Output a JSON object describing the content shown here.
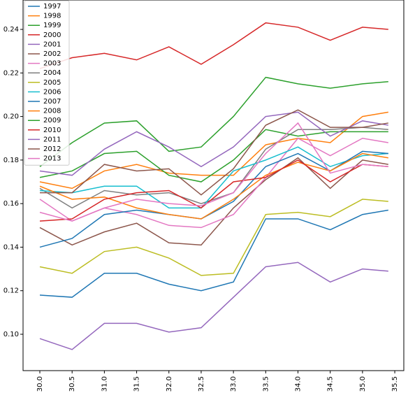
{
  "chart_data": {
    "type": "line",
    "x": [
      30.0,
      30.5,
      31.0,
      31.5,
      32.0,
      32.5,
      33.0,
      33.5,
      34.0,
      34.5,
      35.0,
      35.4
    ],
    "xlim": [
      29.74,
      35.64
    ],
    "xticks": [
      {
        "value": 30.0,
        "label": "30.0"
      },
      30.5,
      {
        "value": 31.0,
        "label": "31.0"
      },
      31.5,
      {
        "value": 32.0,
        "label": "32.0"
      },
      32.5,
      {
        "value": 33.0,
        "label": "33.0"
      },
      33.5,
      {
        "value": 34.0,
        "label": "34.0"
      },
      34.5,
      {
        "value": 35.0,
        "label": "35.0"
      },
      35.5
    ],
    "ylim": [
      0.0833,
      0.2535
    ],
    "yticks": [
      {
        "value": 0.1,
        "label": "0.10"
      },
      0.12,
      0.14,
      0.16,
      0.18,
      {
        "value": 0.2,
        "label": "0.20"
      },
      0.22,
      0.24
    ],
    "legend": "upper left",
    "series": [
      {
        "name": "1997",
        "color": "#1f77b4",
        "values": [
          0.118,
          0.117,
          0.128,
          0.128,
          0.123,
          0.12,
          0.124,
          0.153,
          0.153,
          0.148,
          0.155,
          0.157
        ]
      },
      {
        "name": "1998",
        "color": "#ff7f0e",
        "values": [
          0.17,
          0.167,
          0.175,
          0.178,
          0.174,
          0.173,
          0.173,
          0.187,
          0.19,
          0.188,
          0.2,
          0.202
        ]
      },
      {
        "name": "1999",
        "color": "#2ca02c",
        "values": [
          0.177,
          0.188,
          0.197,
          0.198,
          0.184,
          0.186,
          0.2,
          0.218,
          0.215,
          0.213,
          0.215,
          0.216
        ]
      },
      {
        "name": "2000",
        "color": "#d62728",
        "values": [
          0.222,
          0.227,
          0.229,
          0.226,
          0.232,
          0.224,
          0.233,
          0.243,
          0.241,
          0.235,
          0.241,
          0.24
        ]
      },
      {
        "name": "2001",
        "color": "#9467bd",
        "values": [
          0.098,
          0.093,
          0.105,
          0.105,
          0.101,
          0.103,
          0.117,
          0.131,
          0.133,
          0.124,
          0.13,
          0.129
        ]
      },
      {
        "name": "2002",
        "color": "#8c564b",
        "values": [
          0.149,
          0.141,
          0.147,
          0.151,
          0.142,
          0.141,
          0.158,
          0.171,
          0.181,
          0.167,
          0.18,
          0.178
        ]
      },
      {
        "name": "2003",
        "color": "#e377c2",
        "values": [
          0.162,
          0.152,
          0.158,
          0.155,
          0.15,
          0.149,
          0.155,
          0.172,
          0.19,
          0.182,
          0.19,
          0.188
        ]
      },
      {
        "name": "2004",
        "color": "#7f7f7f",
        "values": [
          0.167,
          0.158,
          0.166,
          0.164,
          0.165,
          0.16,
          0.165,
          0.185,
          0.194,
          0.194,
          0.195,
          0.194
        ]
      },
      {
        "name": "2005",
        "color": "#bcbd22",
        "values": [
          0.131,
          0.128,
          0.138,
          0.14,
          0.135,
          0.127,
          0.128,
          0.155,
          0.156,
          0.154,
          0.162,
          0.161
        ]
      },
      {
        "name": "2006",
        "color": "#17becf",
        "values": [
          0.166,
          0.165,
          0.168,
          0.168,
          0.158,
          0.158,
          0.175,
          0.18,
          0.186,
          0.177,
          0.182,
          0.183
        ]
      },
      {
        "name": "2007",
        "color": "#1f77b4",
        "values": [
          0.14,
          0.144,
          0.155,
          0.157,
          0.155,
          0.153,
          0.161,
          0.177,
          0.183,
          0.175,
          0.184,
          0.183
        ]
      },
      {
        "name": "2008",
        "color": "#ff7f0e",
        "values": [
          0.168,
          0.162,
          0.163,
          0.158,
          0.155,
          0.153,
          0.162,
          0.173,
          0.179,
          0.175,
          0.183,
          0.181
        ]
      },
      {
        "name": "2009",
        "color": "#2ca02c",
        "values": [
          0.172,
          0.175,
          0.183,
          0.184,
          0.173,
          0.17,
          0.18,
          0.194,
          0.191,
          0.193,
          0.193,
          0.193
        ]
      },
      {
        "name": "2010",
        "color": "#d62728",
        "values": [
          0.152,
          0.153,
          0.162,
          0.165,
          0.166,
          0.158,
          0.17,
          0.172,
          0.18,
          0.17,
          0.178,
          0.177
        ]
      },
      {
        "name": "2011",
        "color": "#9467bd",
        "values": [
          0.175,
          0.173,
          0.185,
          0.193,
          0.186,
          0.177,
          0.186,
          0.2,
          0.202,
          0.191,
          0.198,
          0.196
        ]
      },
      {
        "name": "2012",
        "color": "#8c564b",
        "values": [
          0.165,
          0.165,
          0.178,
          0.175,
          0.176,
          0.164,
          0.176,
          0.196,
          0.203,
          0.195,
          0.195,
          0.197
        ]
      },
      {
        "name": "2013",
        "color": "#e377c2",
        "values": [
          0.156,
          0.152,
          0.158,
          0.162,
          0.16,
          0.159,
          0.165,
          0.183,
          0.197,
          0.174,
          0.178,
          0.177
        ]
      }
    ]
  }
}
